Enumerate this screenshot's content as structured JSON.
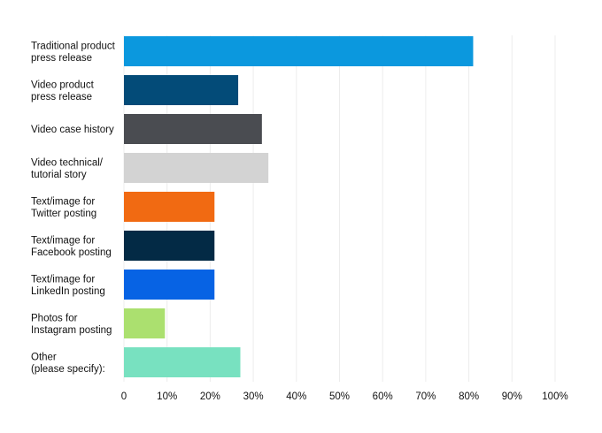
{
  "chart_data": {
    "type": "bar",
    "orientation": "horizontal",
    "categories": [
      [
        "Traditional product",
        "press release"
      ],
      [
        "Video product",
        "press release"
      ],
      [
        "Video case history"
      ],
      [
        "Video technical/",
        "tutorial story"
      ],
      [
        "Text/image for",
        "Twitter posting"
      ],
      [
        "Text/image for",
        "Facebook posting"
      ],
      [
        "Text/image for",
        "LinkedIn posting"
      ],
      [
        "Photos for",
        "Instagram posting"
      ],
      [
        "Other",
        "(please specify):"
      ]
    ],
    "values": [
      81,
      26.5,
      32,
      33.5,
      21,
      21,
      21,
      9.5,
      27
    ],
    "colors": [
      "#0b98de",
      "#034b78",
      "#4a4c51",
      "#d3d3d3",
      "#f16a12",
      "#032a45",
      "#0763e4",
      "#abe06f",
      "#78e1c0"
    ],
    "xlim": [
      0,
      100
    ],
    "xticks": [
      "0",
      "10%",
      "20%",
      "30%",
      "40%",
      "50%",
      "60%",
      "70%",
      "80%",
      "90%",
      "100%"
    ],
    "xtick_values": [
      0,
      10,
      20,
      30,
      40,
      50,
      60,
      70,
      80,
      90,
      100
    ],
    "grid": true,
    "legend": "none",
    "gridline_color": "#ececec"
  }
}
